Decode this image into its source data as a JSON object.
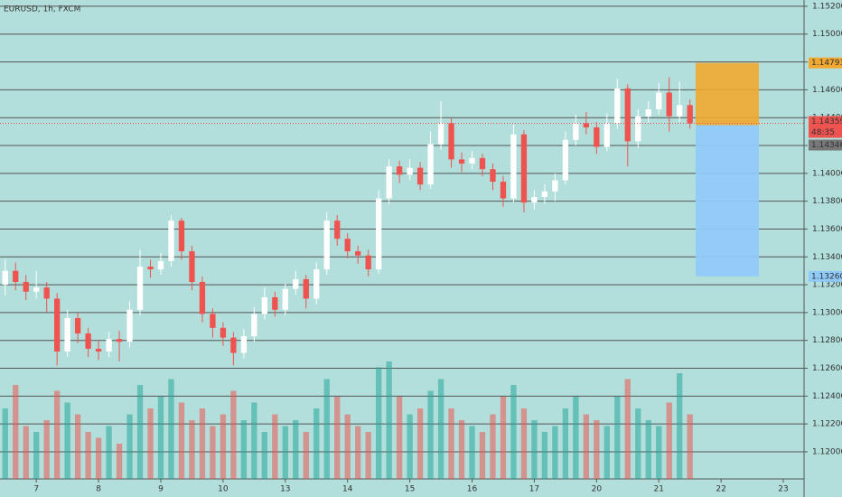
{
  "chart_data": {
    "type": "candlestick",
    "title": "EURUSD, 1h, FXCM",
    "x": [
      -12,
      -8,
      -4,
      0,
      4,
      8,
      12,
      16,
      20,
      24,
      28,
      32,
      36,
      40,
      44,
      48,
      52,
      56,
      60,
      64,
      68,
      72,
      76,
      80,
      84,
      88,
      92,
      96,
      100,
      104,
      108,
      112,
      116,
      120,
      124,
      128,
      132,
      136,
      140,
      144,
      148,
      152,
      156,
      160,
      164,
      168,
      172,
      176,
      180,
      184,
      188,
      192,
      196,
      200,
      204,
      208,
      212,
      216,
      220,
      224,
      228,
      232,
      236,
      240,
      244,
      248,
      252
    ],
    "open": [
      1.132,
      1.133,
      1.1322,
      1.1315,
      1.1318,
      1.131,
      1.1272,
      1.1296,
      1.1285,
      1.1274,
      1.1272,
      1.1281,
      1.1279,
      1.1302,
      1.1333,
      1.1331,
      1.1337,
      1.1366,
      1.1344,
      1.1322,
      1.1299,
      1.1289,
      1.1282,
      1.1271,
      1.1283,
      1.1299,
      1.1311,
      1.1302,
      1.1317,
      1.1324,
      1.131,
      1.1331,
      1.1366,
      1.1353,
      1.1344,
      1.1341,
      1.1331,
      1.1382,
      1.1405,
      1.1399,
      1.1404,
      1.1392,
      1.1421,
      1.1436,
      1.141,
      1.1407,
      1.1411,
      1.1403,
      1.1394,
      1.1382,
      1.1428,
      1.1379,
      1.1383,
      1.1387,
      1.1395,
      1.1424,
      1.1436,
      1.1433,
      1.1419,
      1.1436,
      1.1461,
      1.1423,
      1.1441,
      1.1446,
      1.1458,
      1.1441,
      1.1449
    ],
    "high": [
      1.1338,
      1.1336,
      1.1327,
      1.133,
      1.1322,
      1.1314,
      1.1302,
      1.13,
      1.1289,
      1.128,
      1.1286,
      1.1287,
      1.1308,
      1.1345,
      1.1338,
      1.1343,
      1.137,
      1.1368,
      1.1348,
      1.1326,
      1.1303,
      1.1293,
      1.1286,
      1.1288,
      1.1304,
      1.1318,
      1.1315,
      1.1321,
      1.133,
      1.1327,
      1.1336,
      1.1372,
      1.137,
      1.1357,
      1.1348,
      1.1345,
      1.1388,
      1.141,
      1.1409,
      1.141,
      1.1408,
      1.143,
      1.1452,
      1.144,
      1.1415,
      1.1416,
      1.1414,
      1.1407,
      1.1398,
      1.1435,
      1.1431,
      1.1388,
      1.1392,
      1.14,
      1.143,
      1.1442,
      1.1444,
      1.1437,
      1.1443,
      1.1468,
      1.1464,
      1.1446,
      1.1452,
      1.1465,
      1.1469,
      1.1466,
      1.1453
    ],
    "low": [
      1.1312,
      1.1316,
      1.1309,
      1.131,
      1.13,
      1.1262,
      1.1268,
      1.1278,
      1.1268,
      1.1266,
      1.1268,
      1.1265,
      1.1275,
      1.1298,
      1.1325,
      1.1327,
      1.1333,
      1.1338,
      1.1316,
      1.1293,
      1.1282,
      1.1276,
      1.1262,
      1.1267,
      1.1279,
      1.1295,
      1.1297,
      1.1298,
      1.1313,
      1.1303,
      1.1306,
      1.1327,
      1.1348,
      1.1339,
      1.1335,
      1.1326,
      1.1328,
      1.1378,
      1.1393,
      1.1395,
      1.1388,
      1.1389,
      1.1417,
      1.1404,
      1.1401,
      1.1403,
      1.1398,
      1.1388,
      1.1376,
      1.1379,
      1.1372,
      1.1374,
      1.1378,
      1.138,
      1.1392,
      1.142,
      1.1428,
      1.1414,
      1.1416,
      1.1432,
      1.1405,
      1.1418,
      1.1436,
      1.1442,
      1.143,
      1.1437,
      1.1432
    ],
    "close": [
      1.133,
      1.1322,
      1.1315,
      1.1318,
      1.131,
      1.1272,
      1.1296,
      1.1285,
      1.1274,
      1.1272,
      1.1281,
      1.1279,
      1.1302,
      1.1333,
      1.1331,
      1.1337,
      1.1366,
      1.1344,
      1.1322,
      1.1299,
      1.1289,
      1.1282,
      1.1271,
      1.1283,
      1.1299,
      1.1311,
      1.1302,
      1.1317,
      1.1324,
      1.131,
      1.1331,
      1.1366,
      1.1353,
      1.1344,
      1.1341,
      1.1331,
      1.1382,
      1.1405,
      1.1399,
      1.1404,
      1.1392,
      1.1421,
      1.1436,
      1.141,
      1.1407,
      1.1411,
      1.1403,
      1.1394,
      1.1382,
      1.1428,
      1.1379,
      1.1383,
      1.1387,
      1.1395,
      1.1424,
      1.1436,
      1.1433,
      1.1419,
      1.1436,
      1.1461,
      1.1423,
      1.1441,
      1.1446,
      1.1458,
      1.1441,
      1.1449,
      1.14359
    ],
    "volume": [
      60,
      80,
      45,
      40,
      50,
      75,
      65,
      55,
      40,
      35,
      45,
      30,
      55,
      80,
      60,
      70,
      85,
      65,
      50,
      60,
      45,
      55,
      75,
      50,
      65,
      40,
      55,
      45,
      50,
      40,
      60,
      85,
      70,
      55,
      45,
      40,
      95,
      100,
      70,
      55,
      60,
      75,
      85,
      60,
      50,
      45,
      40,
      55,
      70,
      80,
      60,
      50,
      40,
      45,
      60,
      70,
      55,
      50,
      45,
      70,
      85,
      60,
      50,
      45,
      65,
      90,
      55
    ],
    "up_color": "#ffffff",
    "down_color": "#ef5350",
    "volume_up_color": "#26a69a",
    "volume_down_color": "#ef5350",
    "xlim": [
      -14,
      296
    ],
    "ylim": [
      1.11805,
      1.15245
    ],
    "xticks": [
      {
        "value": 0,
        "label": "7"
      },
      {
        "value": 24,
        "label": "8"
      },
      {
        "value": 48,
        "label": "9"
      },
      {
        "value": 72,
        "label": "10"
      },
      {
        "value": 96,
        "label": "13"
      },
      {
        "value": 120,
        "label": "14"
      },
      {
        "value": 144,
        "label": "15"
      },
      {
        "value": 168,
        "label": "16"
      },
      {
        "value": 192,
        "label": "17"
      },
      {
        "value": 216,
        "label": "20"
      },
      {
        "value": 240,
        "label": "21"
      },
      {
        "value": 264,
        "label": "22"
      },
      {
        "value": 288,
        "label": "23"
      }
    ],
    "yticks": [
      {
        "value": 1.152,
        "label": "1.15200"
      },
      {
        "value": 1.15,
        "label": "1.15000"
      },
      {
        "value": 1.148,
        "label": "1.14800"
      },
      {
        "value": 1.146,
        "label": "1.14600"
      },
      {
        "value": 1.144,
        "label": "1.14400"
      },
      {
        "value": 1.142,
        "label": "1.14200"
      },
      {
        "value": 1.14,
        "label": "1.14000"
      },
      {
        "value": 1.138,
        "label": "1.13800"
      },
      {
        "value": 1.136,
        "label": "1.13600"
      },
      {
        "value": 1.134,
        "label": "1.13400"
      },
      {
        "value": 1.132,
        "label": "1.13200"
      },
      {
        "value": 1.13,
        "label": "1.13000"
      },
      {
        "value": 1.128,
        "label": "1.12800"
      },
      {
        "value": 1.126,
        "label": "1.12600"
      },
      {
        "value": 1.124,
        "label": "1.12400"
      },
      {
        "value": 1.122,
        "label": "1.12200"
      },
      {
        "value": 1.12,
        "label": "1.12000"
      }
    ],
    "grid": true,
    "countdown": "48:35",
    "position": {
      "stop": 1.14793,
      "entry": 1.14346,
      "target": {
        "value": 1.1326,
        "label": "1.13260"
      }
    }
  }
}
